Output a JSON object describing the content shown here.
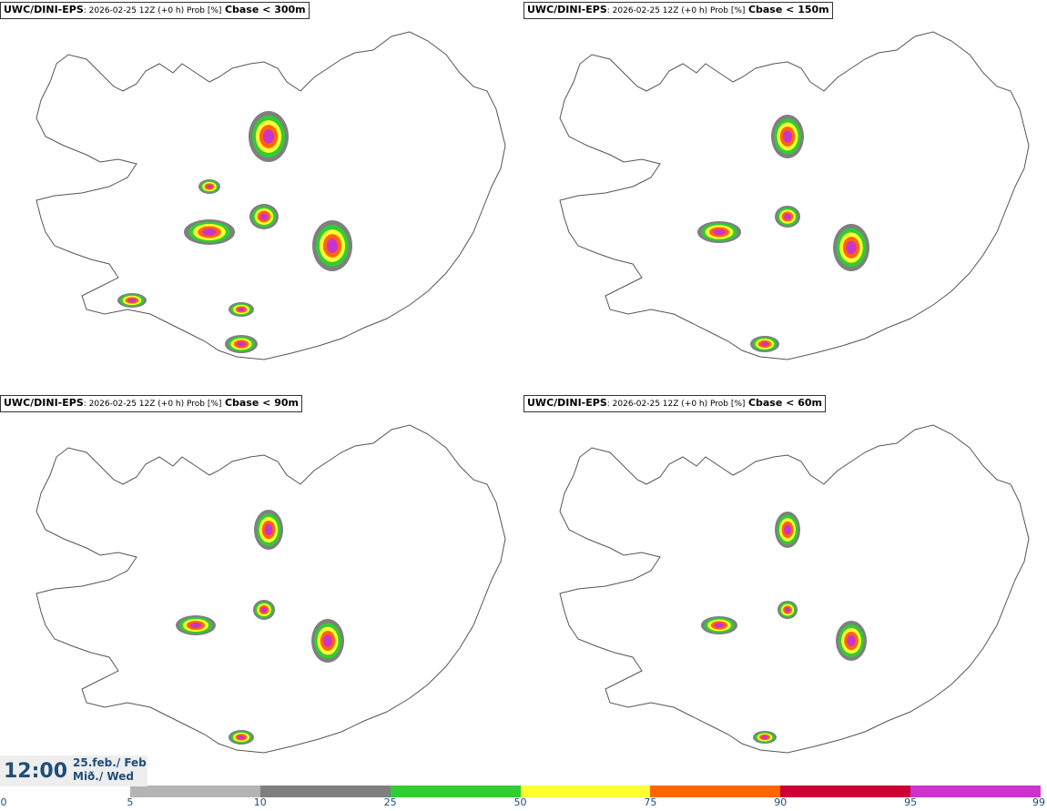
{
  "panels": [
    {
      "model": "UWC/DINI-EPS",
      "meta": ": 2026-02-25 12Z (+0 h) Prob [%]",
      "threshold": "Cbase < 300m"
    },
    {
      "model": "UWC/DINI-EPS",
      "meta": ": 2026-02-25 12Z (+0 h) Prob [%]",
      "threshold": "Cbase < 150m"
    },
    {
      "model": "UWC/DINI-EPS",
      "meta": ": 2026-02-25 12Z (+0 h) Prob [%]",
      "threshold": "Cbase < 90m"
    },
    {
      "model": "UWC/DINI-EPS",
      "meta": ": 2026-02-25 12Z (+0 h) Prob [%]",
      "threshold": "Cbase < 60m"
    }
  ],
  "clock": {
    "time": "12:00",
    "date_line1": "25.feb./ Feb",
    "date_line2": "Mið./ Wed"
  },
  "legend": {
    "ticks": [
      "0",
      "5",
      "10",
      "25",
      "50",
      "75",
      "90",
      "95",
      "99"
    ],
    "colors": [
      "#ffffff",
      "#b4b4b4",
      "#7f7f7f",
      "#33cc33",
      "#ffff33",
      "#ff6600",
      "#cc0033",
      "#cc33cc",
      "#f0aaf0"
    ]
  }
}
